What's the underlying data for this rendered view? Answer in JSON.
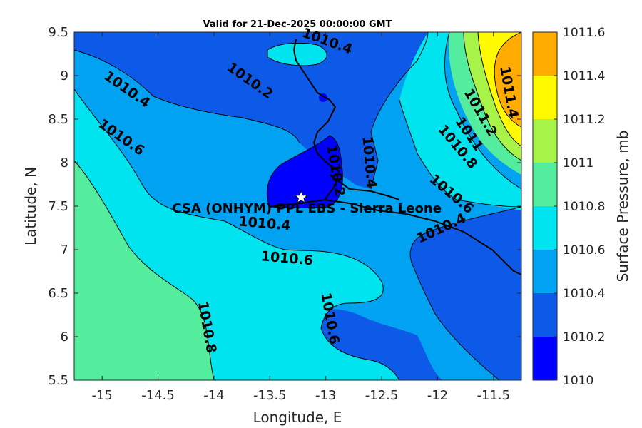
{
  "chart_data": {
    "type": "contour-map",
    "title": "Valid for 21-Dec-2025 00:00:00 GMT",
    "xlabel": "Longitude, E",
    "ylabel": "Latitude, N",
    "xlim": [
      -15.25,
      -11.25
    ],
    "ylim": [
      5.5,
      9.5
    ],
    "xticks": [
      "-15",
      "-14.5",
      "-14",
      "-13.5",
      "-13",
      "-12.5",
      "-12",
      "-11.5"
    ],
    "yticks": [
      "5.5",
      "6",
      "6.5",
      "7",
      "7.5",
      "8",
      "8.5",
      "9",
      "9.5"
    ],
    "colorbar": {
      "label": "Surface Pressure, mb",
      "levels": [
        1010,
        1010.2,
        1010.4,
        1010.6,
        1010.8,
        1011,
        1011.2,
        1011.4,
        1011.6
      ],
      "tick_labels": [
        "1010",
        "1010.2",
        "1010.4",
        "1010.6",
        "1010.8",
        "1011",
        "1011.2",
        "1011.4",
        "1011.6"
      ],
      "colors": [
        "#0000ff",
        "#0e5ae8",
        "#00a2f1",
        "#00e4ef",
        "#54ec9d",
        "#a8f348",
        "#fffa00",
        "#ffab00",
        "#ff5c00"
      ]
    },
    "contour_labels": [
      {
        "text": "1010.4",
        "lon": -13.0,
        "lat": 9.35
      },
      {
        "text": "1010.2",
        "lon": -13.7,
        "lat": 8.9
      },
      {
        "text": "1010.4",
        "lon": -14.8,
        "lat": 8.8
      },
      {
        "text": "1010.6",
        "lon": -14.85,
        "lat": 8.25
      },
      {
        "text": "1010.2",
        "lon": -12.95,
        "lat": 7.9
      },
      {
        "text": "1010.4",
        "lon": -12.65,
        "lat": 8.0
      },
      {
        "text": "1011.4",
        "lon": -11.4,
        "lat": 8.8
      },
      {
        "text": "1011.2",
        "lon": -11.65,
        "lat": 8.55
      },
      {
        "text": "1011",
        "lon": -11.75,
        "lat": 8.3
      },
      {
        "text": "1010.8",
        "lon": -11.85,
        "lat": 8.15
      },
      {
        "text": "1010.6",
        "lon": -11.9,
        "lat": 7.6
      },
      {
        "text": "1010.4",
        "lon": -11.95,
        "lat": 7.2
      },
      {
        "text": "1010.4",
        "lon": -13.55,
        "lat": 7.25
      },
      {
        "text": "1010.6",
        "lon": -13.35,
        "lat": 6.85
      },
      {
        "text": "1010.6",
        "lon": -13.0,
        "lat": 6.2
      },
      {
        "text": "1010.8",
        "lon": -14.1,
        "lat": 6.1
      }
    ],
    "site": {
      "name": "CSA (ONHYM) PPL EBS  - Sierra Leone",
      "lon": -13.22,
      "lat": 7.6
    }
  }
}
